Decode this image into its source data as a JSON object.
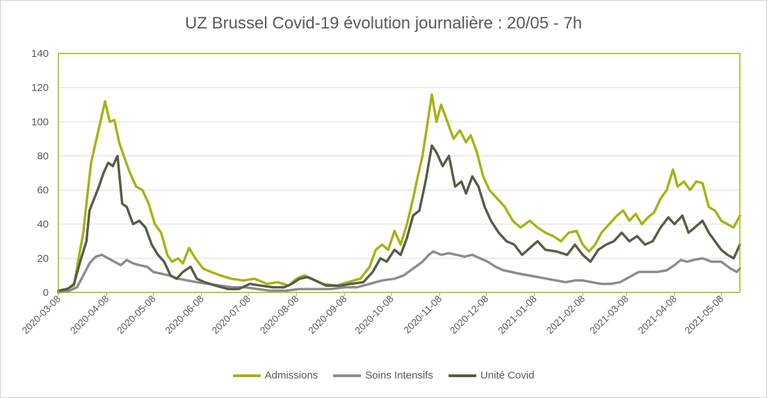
{
  "chart_data": {
    "type": "line",
    "title": "UZ Brussel Covid-19 évolution journalière : 20/05 - 7h",
    "xlabel": "",
    "ylabel": "",
    "ylim": [
      0,
      140
    ],
    "yticks": [
      0,
      20,
      40,
      60,
      80,
      100,
      120,
      140
    ],
    "xlim": [
      "2020-03-08",
      "2021-05-20"
    ],
    "xticks": [
      "2020-03-08",
      "2020-04-08",
      "2020-05-08",
      "2020-06-08",
      "2020-07-08",
      "2020-08-08",
      "2020-09-08",
      "2020-10-08",
      "2020-11-08",
      "2020-12-08",
      "2021-01-08",
      "2021-02-08",
      "2021-03-08",
      "2021-04-08",
      "2021-05-08"
    ],
    "grid": true,
    "legend": "bottom",
    "series": [
      {
        "name": "Admissions",
        "color": "#a6b312",
        "points": [
          [
            "2020-03-08",
            1
          ],
          [
            "2020-03-13",
            2
          ],
          [
            "2020-03-18",
            4
          ],
          [
            "2020-03-21",
            20
          ],
          [
            "2020-03-24",
            35
          ],
          [
            "2020-03-27",
            60
          ],
          [
            "2020-03-29",
            76
          ],
          [
            "2020-04-01",
            88
          ],
          [
            "2020-04-04",
            100
          ],
          [
            "2020-04-07",
            112
          ],
          [
            "2020-04-10",
            100
          ],
          [
            "2020-04-13",
            101
          ],
          [
            "2020-04-16",
            88
          ],
          [
            "2020-04-19",
            80
          ],
          [
            "2020-04-23",
            70
          ],
          [
            "2020-04-27",
            62
          ],
          [
            "2020-05-01",
            60
          ],
          [
            "2020-05-05",
            52
          ],
          [
            "2020-05-09",
            40
          ],
          [
            "2020-05-13",
            35
          ],
          [
            "2020-05-17",
            22
          ],
          [
            "2020-05-20",
            18
          ],
          [
            "2020-05-24",
            20
          ],
          [
            "2020-05-27",
            17
          ],
          [
            "2020-05-31",
            26
          ],
          [
            "2020-06-04",
            20
          ],
          [
            "2020-06-09",
            14
          ],
          [
            "2020-06-14",
            12
          ],
          [
            "2020-06-20",
            10
          ],
          [
            "2020-06-27",
            8
          ],
          [
            "2020-07-05",
            7
          ],
          [
            "2020-07-12",
            8
          ],
          [
            "2020-07-20",
            5
          ],
          [
            "2020-07-27",
            6
          ],
          [
            "2020-08-03",
            4
          ],
          [
            "2020-08-08",
            8
          ],
          [
            "2020-08-13",
            10
          ],
          [
            "2020-08-18",
            8
          ],
          [
            "2020-08-25",
            5
          ],
          [
            "2020-09-03",
            4
          ],
          [
            "2020-09-10",
            6
          ],
          [
            "2020-09-18",
            8
          ],
          [
            "2020-09-24",
            15
          ],
          [
            "2020-09-28",
            25
          ],
          [
            "2020-10-02",
            28
          ],
          [
            "2020-10-06",
            25
          ],
          [
            "2020-10-10",
            36
          ],
          [
            "2020-10-14",
            28
          ],
          [
            "2020-10-18",
            40
          ],
          [
            "2020-10-22",
            55
          ],
          [
            "2020-10-25",
            68
          ],
          [
            "2020-10-28",
            80
          ],
          [
            "2020-10-31",
            98
          ],
          [
            "2020-11-03",
            116
          ],
          [
            "2020-11-06",
            100
          ],
          [
            "2020-11-09",
            110
          ],
          [
            "2020-11-13",
            100
          ],
          [
            "2020-11-17",
            90
          ],
          [
            "2020-11-21",
            95
          ],
          [
            "2020-11-25",
            88
          ],
          [
            "2020-11-28",
            92
          ],
          [
            "2020-12-02",
            82
          ],
          [
            "2020-12-06",
            68
          ],
          [
            "2020-12-10",
            60
          ],
          [
            "2020-12-15",
            55
          ],
          [
            "2020-12-20",
            50
          ],
          [
            "2020-12-25",
            42
          ],
          [
            "2020-12-30",
            38
          ],
          [
            "2021-01-05",
            42
          ],
          [
            "2021-01-10",
            38
          ],
          [
            "2021-01-15",
            35
          ],
          [
            "2021-01-20",
            33
          ],
          [
            "2021-01-25",
            30
          ],
          [
            "2021-01-30",
            35
          ],
          [
            "2021-02-04",
            36
          ],
          [
            "2021-02-08",
            28
          ],
          [
            "2021-02-12",
            24
          ],
          [
            "2021-02-16",
            28
          ],
          [
            "2021-02-20",
            35
          ],
          [
            "2021-02-25",
            40
          ],
          [
            "2021-03-02",
            45
          ],
          [
            "2021-03-06",
            48
          ],
          [
            "2021-03-10",
            42
          ],
          [
            "2021-03-14",
            46
          ],
          [
            "2021-03-18",
            40
          ],
          [
            "2021-03-22",
            44
          ],
          [
            "2021-03-26",
            47
          ],
          [
            "2021-03-30",
            55
          ],
          [
            "2021-04-03",
            60
          ],
          [
            "2021-04-07",
            72
          ],
          [
            "2021-04-10",
            62
          ],
          [
            "2021-04-14",
            65
          ],
          [
            "2021-04-18",
            60
          ],
          [
            "2021-04-22",
            65
          ],
          [
            "2021-04-26",
            64
          ],
          [
            "2021-04-30",
            50
          ],
          [
            "2021-05-04",
            48
          ],
          [
            "2021-05-08",
            42
          ],
          [
            "2021-05-12",
            40
          ],
          [
            "2021-05-16",
            38
          ],
          [
            "2021-05-20",
            45
          ]
        ]
      },
      {
        "name": "Soins Intensifs",
        "color": "#8c8c8c",
        "points": [
          [
            "2020-03-08",
            0
          ],
          [
            "2020-03-15",
            1
          ],
          [
            "2020-03-20",
            3
          ],
          [
            "2020-03-24",
            10
          ],
          [
            "2020-03-28",
            17
          ],
          [
            "2020-04-01",
            21
          ],
          [
            "2020-04-05",
            22
          ],
          [
            "2020-04-09",
            20
          ],
          [
            "2020-04-13",
            18
          ],
          [
            "2020-04-17",
            16
          ],
          [
            "2020-04-21",
            19
          ],
          [
            "2020-04-25",
            17
          ],
          [
            "2020-04-29",
            16
          ],
          [
            "2020-05-04",
            15
          ],
          [
            "2020-05-08",
            12
          ],
          [
            "2020-05-13",
            11
          ],
          [
            "2020-05-18",
            10
          ],
          [
            "2020-05-24",
            8
          ],
          [
            "2020-05-30",
            7
          ],
          [
            "2020-06-05",
            6
          ],
          [
            "2020-06-12",
            5
          ],
          [
            "2020-06-20",
            4
          ],
          [
            "2020-06-28",
            3
          ],
          [
            "2020-07-06",
            3
          ],
          [
            "2020-07-14",
            2
          ],
          [
            "2020-07-22",
            1
          ],
          [
            "2020-08-01",
            1
          ],
          [
            "2020-08-10",
            2
          ],
          [
            "2020-08-20",
            2
          ],
          [
            "2020-08-30",
            2
          ],
          [
            "2020-09-08",
            3
          ],
          [
            "2020-09-16",
            3
          ],
          [
            "2020-09-24",
            5
          ],
          [
            "2020-10-02",
            7
          ],
          [
            "2020-10-10",
            8
          ],
          [
            "2020-10-16",
            10
          ],
          [
            "2020-10-22",
            14
          ],
          [
            "2020-10-28",
            18
          ],
          [
            "2020-11-01",
            22
          ],
          [
            "2020-11-04",
            24
          ],
          [
            "2020-11-09",
            22
          ],
          [
            "2020-11-14",
            23
          ],
          [
            "2020-11-19",
            22
          ],
          [
            "2020-11-24",
            21
          ],
          [
            "2020-11-29",
            22
          ],
          [
            "2020-12-04",
            20
          ],
          [
            "2020-12-09",
            18
          ],
          [
            "2020-12-14",
            15
          ],
          [
            "2020-12-19",
            13
          ],
          [
            "2020-12-24",
            12
          ],
          [
            "2020-12-29",
            11
          ],
          [
            "2021-01-04",
            10
          ],
          [
            "2021-01-10",
            9
          ],
          [
            "2021-01-16",
            8
          ],
          [
            "2021-01-22",
            7
          ],
          [
            "2021-01-28",
            6
          ],
          [
            "2021-02-03",
            7
          ],
          [
            "2021-02-08",
            7
          ],
          [
            "2021-02-14",
            6
          ],
          [
            "2021-02-20",
            5
          ],
          [
            "2021-02-26",
            5
          ],
          [
            "2021-03-04",
            6
          ],
          [
            "2021-03-10",
            9
          ],
          [
            "2021-03-16",
            12
          ],
          [
            "2021-03-22",
            12
          ],
          [
            "2021-03-28",
            12
          ],
          [
            "2021-04-03",
            13
          ],
          [
            "2021-04-08",
            16
          ],
          [
            "2021-04-12",
            19
          ],
          [
            "2021-04-16",
            18
          ],
          [
            "2021-04-20",
            19
          ],
          [
            "2021-04-26",
            20
          ],
          [
            "2021-05-02",
            18
          ],
          [
            "2021-05-08",
            18
          ],
          [
            "2021-05-14",
            14
          ],
          [
            "2021-05-18",
            12
          ],
          [
            "2021-05-20",
            14
          ]
        ]
      },
      {
        "name": "Unité Covid",
        "color": "#575c48",
        "points": [
          [
            "2020-03-08",
            1
          ],
          [
            "2020-03-14",
            2
          ],
          [
            "2020-03-18",
            5
          ],
          [
            "2020-03-22",
            18
          ],
          [
            "2020-03-26",
            30
          ],
          [
            "2020-03-28",
            48
          ],
          [
            "2020-03-31",
            55
          ],
          [
            "2020-04-03",
            62
          ],
          [
            "2020-04-06",
            70
          ],
          [
            "2020-04-09",
            76
          ],
          [
            "2020-04-12",
            74
          ],
          [
            "2020-04-15",
            80
          ],
          [
            "2020-04-18",
            52
          ],
          [
            "2020-04-21",
            50
          ],
          [
            "2020-04-25",
            40
          ],
          [
            "2020-04-29",
            42
          ],
          [
            "2020-05-03",
            38
          ],
          [
            "2020-05-07",
            28
          ],
          [
            "2020-05-11",
            22
          ],
          [
            "2020-05-15",
            18
          ],
          [
            "2020-05-19",
            10
          ],
          [
            "2020-05-23",
            8
          ],
          [
            "2020-05-27",
            12
          ],
          [
            "2020-06-01",
            15
          ],
          [
            "2020-06-05",
            8
          ],
          [
            "2020-06-10",
            6
          ],
          [
            "2020-06-17",
            4
          ],
          [
            "2020-06-25",
            2
          ],
          [
            "2020-07-02",
            2
          ],
          [
            "2020-07-09",
            5
          ],
          [
            "2020-07-16",
            4
          ],
          [
            "2020-07-24",
            3
          ],
          [
            "2020-07-31",
            3
          ],
          [
            "2020-08-05",
            5
          ],
          [
            "2020-08-10",
            8
          ],
          [
            "2020-08-15",
            9
          ],
          [
            "2020-08-20",
            7
          ],
          [
            "2020-08-27",
            4
          ],
          [
            "2020-09-05",
            4
          ],
          [
            "2020-09-12",
            5
          ],
          [
            "2020-09-20",
            6
          ],
          [
            "2020-09-26",
            12
          ],
          [
            "2020-10-01",
            20
          ],
          [
            "2020-10-05",
            18
          ],
          [
            "2020-10-10",
            25
          ],
          [
            "2020-10-14",
            22
          ],
          [
            "2020-10-18",
            32
          ],
          [
            "2020-10-22",
            45
          ],
          [
            "2020-10-26",
            48
          ],
          [
            "2020-10-30",
            65
          ],
          [
            "2020-11-03",
            86
          ],
          [
            "2020-11-06",
            82
          ],
          [
            "2020-11-10",
            74
          ],
          [
            "2020-11-14",
            80
          ],
          [
            "2020-11-18",
            62
          ],
          [
            "2020-11-22",
            65
          ],
          [
            "2020-11-25",
            58
          ],
          [
            "2020-11-29",
            68
          ],
          [
            "2020-12-03",
            62
          ],
          [
            "2020-12-07",
            50
          ],
          [
            "2020-12-11",
            42
          ],
          [
            "2020-12-16",
            35
          ],
          [
            "2020-12-21",
            30
          ],
          [
            "2020-12-26",
            28
          ],
          [
            "2020-12-31",
            22
          ],
          [
            "2021-01-05",
            26
          ],
          [
            "2021-01-10",
            30
          ],
          [
            "2021-01-15",
            25
          ],
          [
            "2021-01-22",
            24
          ],
          [
            "2021-01-29",
            22
          ],
          [
            "2021-02-03",
            28
          ],
          [
            "2021-02-08",
            22
          ],
          [
            "2021-02-13",
            18
          ],
          [
            "2021-02-18",
            25
          ],
          [
            "2021-02-23",
            28
          ],
          [
            "2021-02-28",
            30
          ],
          [
            "2021-03-05",
            35
          ],
          [
            "2021-03-10",
            30
          ],
          [
            "2021-03-15",
            33
          ],
          [
            "2021-03-20",
            28
          ],
          [
            "2021-03-25",
            30
          ],
          [
            "2021-03-30",
            38
          ],
          [
            "2021-04-04",
            44
          ],
          [
            "2021-04-08",
            40
          ],
          [
            "2021-04-13",
            45
          ],
          [
            "2021-04-17",
            35
          ],
          [
            "2021-04-21",
            38
          ],
          [
            "2021-04-26",
            42
          ],
          [
            "2021-04-30",
            35
          ],
          [
            "2021-05-04",
            30
          ],
          [
            "2021-05-08",
            25
          ],
          [
            "2021-05-12",
            22
          ],
          [
            "2021-05-16",
            20
          ],
          [
            "2021-05-20",
            28
          ]
        ]
      }
    ]
  }
}
